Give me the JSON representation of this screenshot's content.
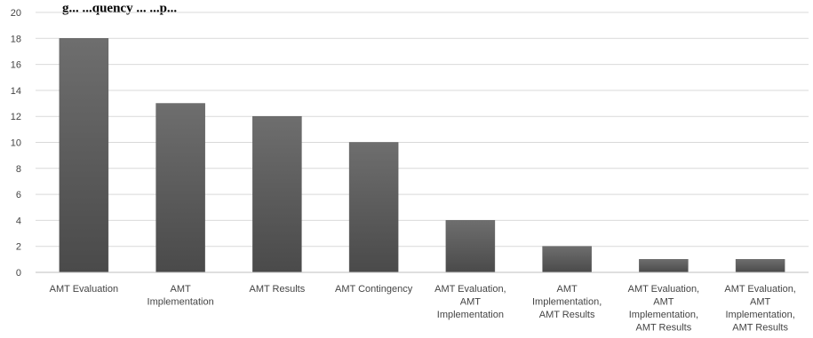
{
  "chart_data": {
    "type": "bar",
    "title": "g... ...quency ... ...p...",
    "xlabel": "",
    "ylabel": "",
    "ylim": [
      0,
      20
    ],
    "yticks": [
      0,
      2,
      4,
      6,
      8,
      10,
      12,
      14,
      16,
      18,
      20
    ],
    "grid": true,
    "legend": "none",
    "bar_color": "#5e5e5e",
    "categories": [
      "AMT Evaluation",
      "AMT Implementation",
      "AMT Results",
      "AMT Contingency",
      "AMT Evaluation, AMT Implementation",
      "AMT Implementation, AMT Results",
      "AMT Evaluation, AMT Implementation, AMT Results",
      "AMT Evaluation, AMT Implementation, AMT Results"
    ],
    "category_lines": [
      [
        "AMT Evaluation"
      ],
      [
        "AMT",
        "Implementation"
      ],
      [
        "AMT Results"
      ],
      [
        "AMT Contingency"
      ],
      [
        "AMT Evaluation,",
        "AMT",
        "Implementation"
      ],
      [
        "AMT",
        "Implementation,",
        "AMT Results"
      ],
      [
        "AMT Evaluation,",
        "AMT",
        "Implementation,",
        "AMT Results"
      ],
      [
        "AMT Evaluation,",
        "AMT",
        "Implementation,",
        "AMT Results"
      ]
    ],
    "values": [
      18,
      13,
      12,
      10,
      4,
      2,
      1,
      1
    ]
  }
}
